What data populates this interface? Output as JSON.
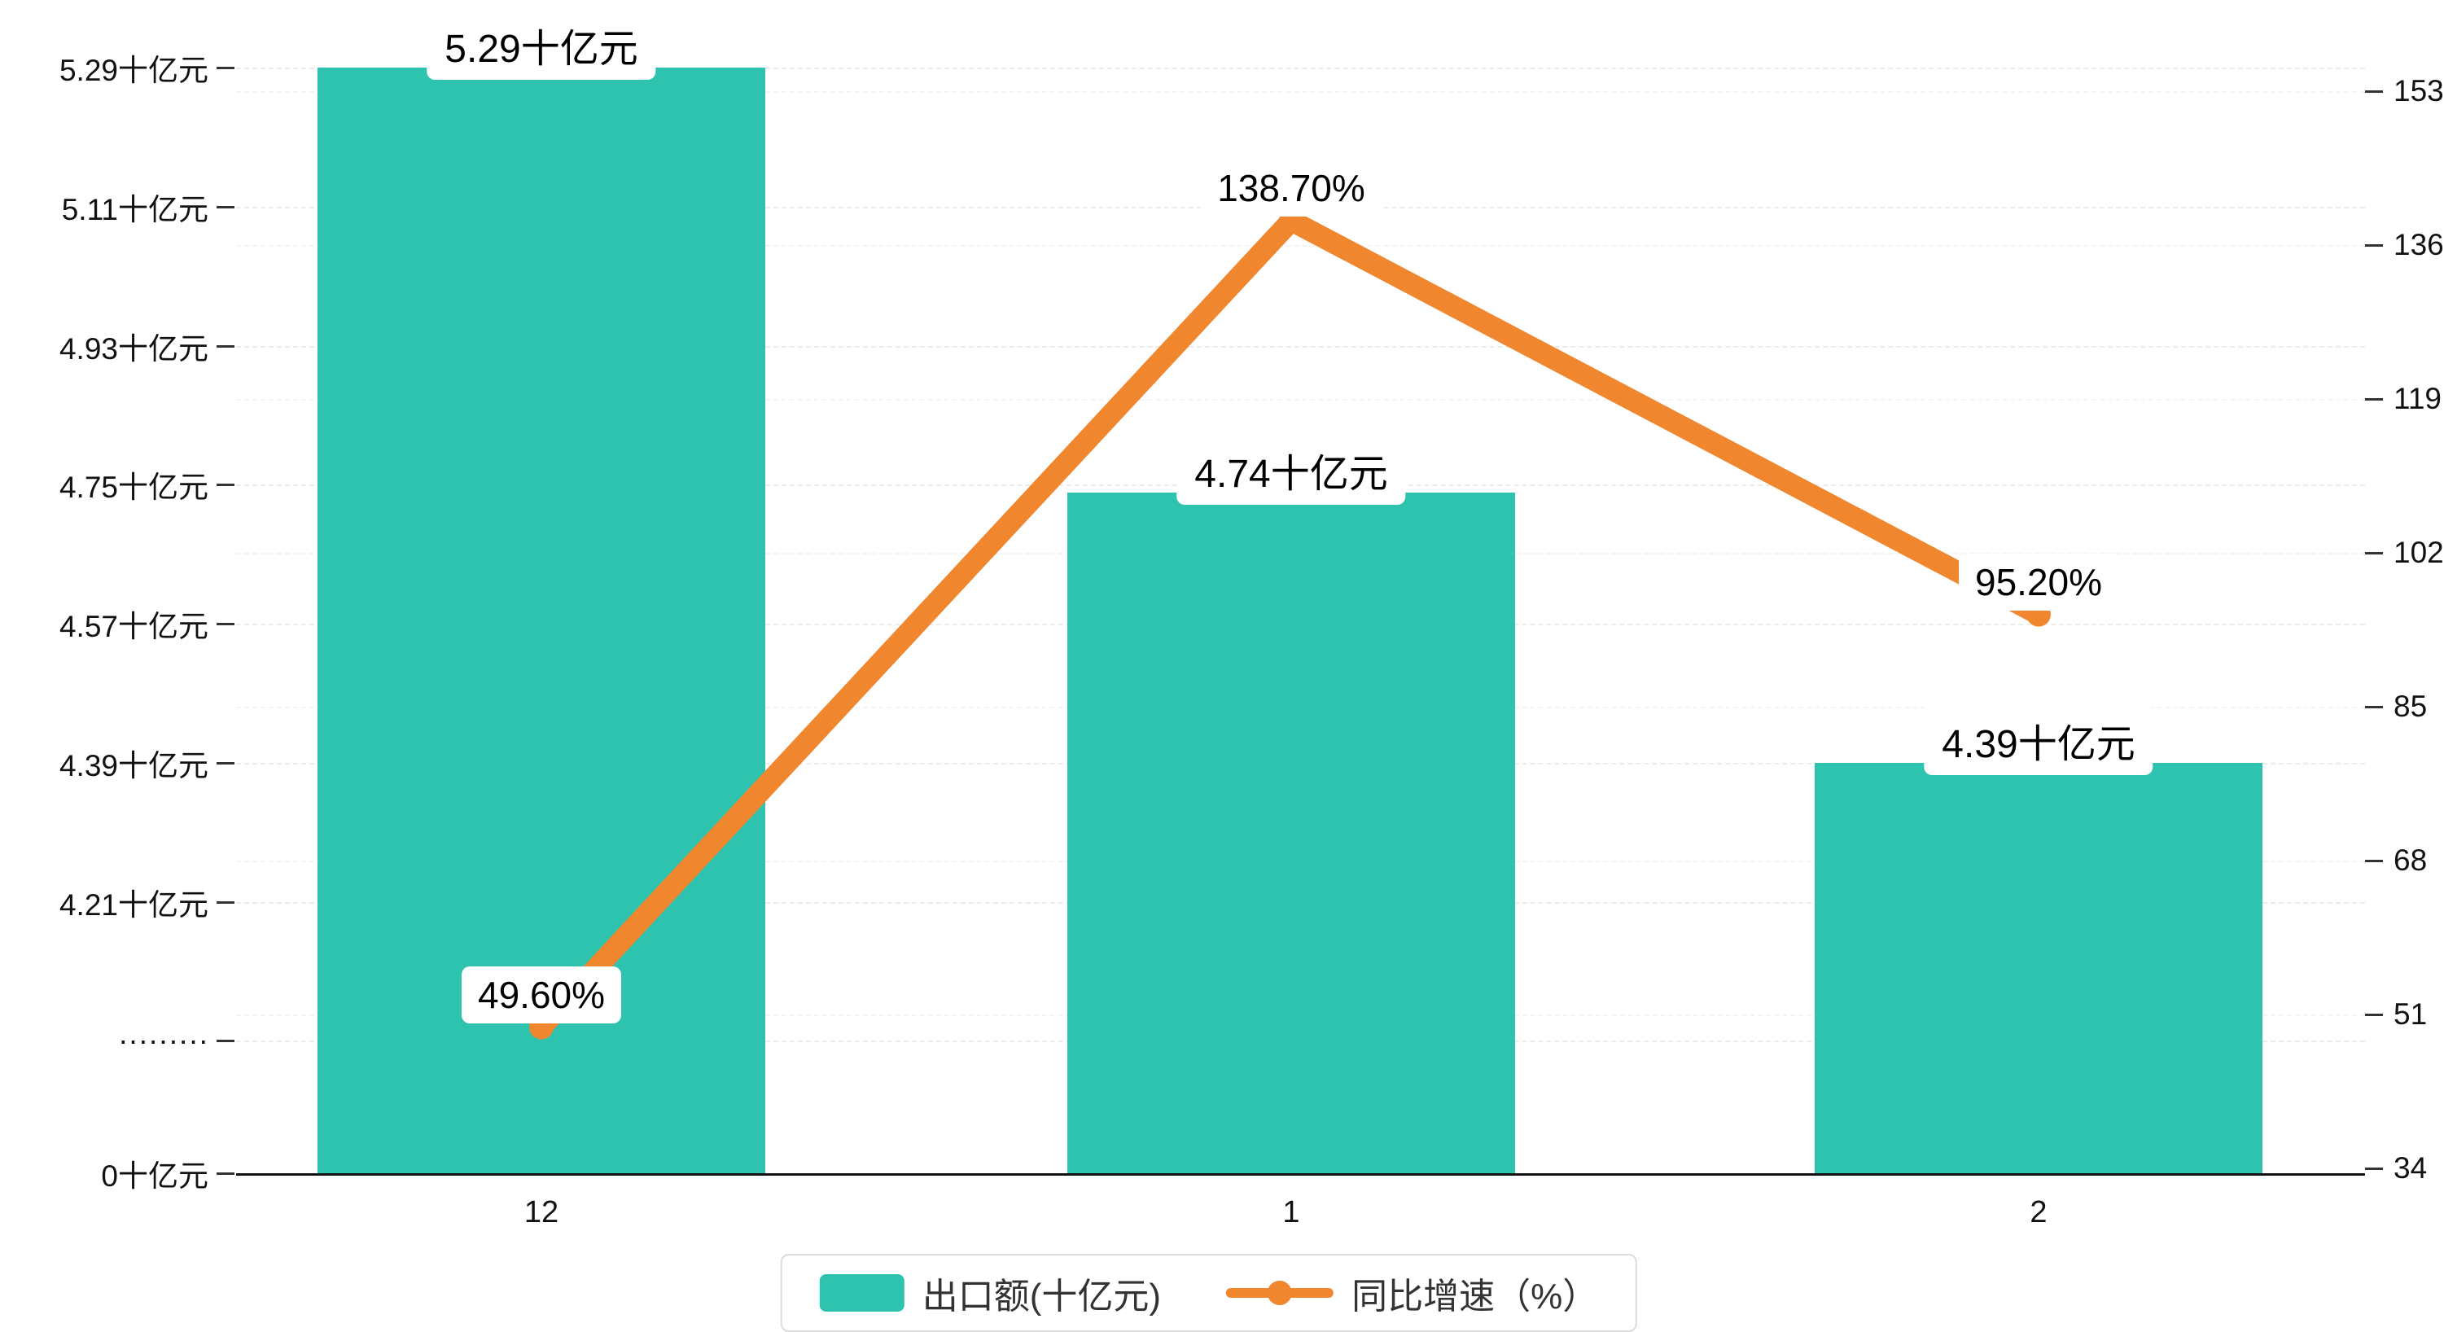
{
  "colors": {
    "bar": "#2EC3AE",
    "line": "#F0862D",
    "grid": "#ececec",
    "axis": "#111111",
    "label_box_bg": "#ffffff",
    "text": "#111111"
  },
  "chart_data": {
    "type": "bar",
    "categories": [
      "12",
      "1",
      "2"
    ],
    "series": [
      {
        "name": "出口额(十亿元)",
        "type": "bar",
        "values": [
          5.29,
          4.74,
          4.39
        ],
        "labels": [
          "5.29十亿元",
          "4.74十亿元",
          "4.39十亿元"
        ],
        "axis": "left"
      },
      {
        "name": "同比增速（%）",
        "type": "line",
        "values": [
          49.6,
          138.7,
          95.2
        ],
        "labels": [
          "49.60%",
          "138.70%",
          "95.20%"
        ],
        "axis": "right"
      }
    ],
    "left_axis": {
      "ticks": [
        "5.29十亿元",
        "5.11十亿元",
        "4.93十亿元",
        "4.75十亿元",
        "4.57十亿元",
        "4.39十亿元",
        "4.21十亿元",
        "·········",
        "0十亿元"
      ],
      "broken_axis": true
    },
    "right_axis": {
      "ticks": [
        "153",
        "136",
        "119",
        "102",
        "85",
        "68",
        "51",
        "34"
      ],
      "min": 34,
      "max": 153
    },
    "legend": [
      {
        "label": "出口额(十亿元)",
        "symbol": "bar"
      },
      {
        "label": "同比增速（%）",
        "symbol": "line"
      }
    ],
    "grid": "dashed",
    "legend_position": "bottom-center"
  }
}
